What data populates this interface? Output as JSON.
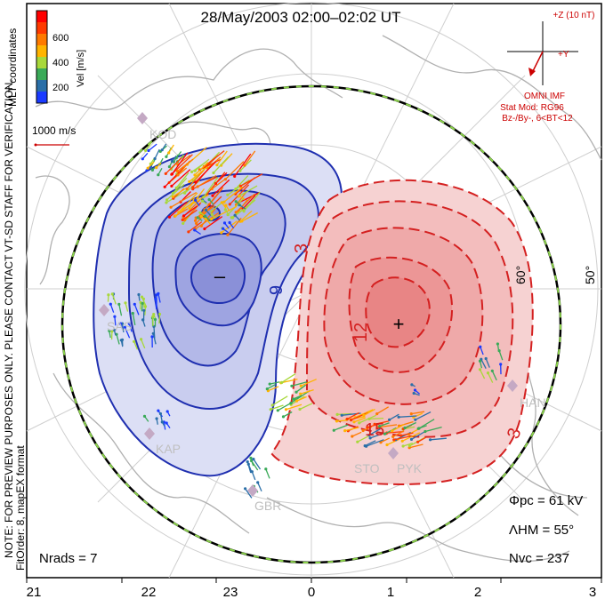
{
  "title": "28/May/2003 02:00–02:02 UT",
  "colorbar": {
    "ticks": [
      "600",
      "400",
      "200"
    ],
    "label": "Vel [m/s]"
  },
  "coordinates": "MLT coordinates",
  "scale_label": "1000 m/s",
  "note": "NOTE: FOR PREVIEW PURPOSES ONLY. PLEASE CONTACT VT-SD STAFF FOR VERIFICATION.",
  "fit_info": "FitOrder: 8, mapEX format",
  "imf": {
    "z_label": "+Z (10 nT)",
    "y_label": "+Y",
    "source": "OMNI IMF",
    "stat_mod": "Stat Mod: RG96",
    "condition": "Bz-/By-, 6<BT<12"
  },
  "lat_labels": [
    "60°",
    "50°"
  ],
  "contour_labels": {
    "neg": "9",
    "pos_a": "3",
    "pos_b": "12",
    "pos_c": "15",
    "pos_d": "3"
  },
  "markers": {
    "min": "–",
    "max": "+"
  },
  "stations": [
    "KOD",
    "SAS",
    "KAP",
    "GBR",
    "STO",
    "PYK",
    "HAN"
  ],
  "stats": {
    "phi_pc": "Φpc  =  61 kV",
    "lambda_hm": "ΛHM  =  55°",
    "n_vc": "Nvc  =  237",
    "n_rads": "Nrads  =  7"
  },
  "mlt_ticks": [
    "21",
    "22",
    "23",
    "0",
    "1",
    "2",
    "3"
  ],
  "colors": {
    "negative": "#1f2fb0",
    "positive": "#d42020",
    "neg_fill": "#b8bce8",
    "pos_fill": "#f2b0b0",
    "boundary_green": "#8bd34a"
  }
}
